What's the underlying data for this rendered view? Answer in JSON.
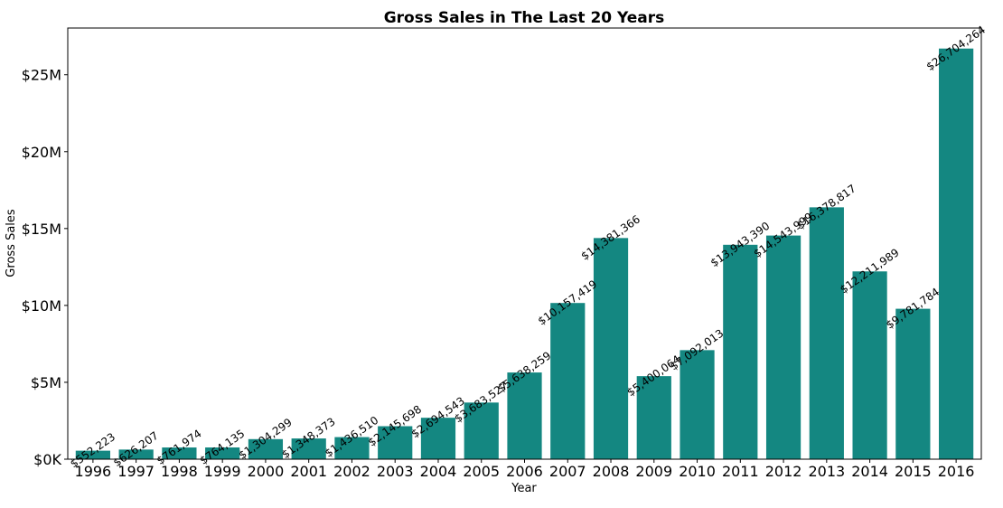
{
  "chart_data": {
    "type": "bar",
    "title": "Gross Sales in The Last 20 Years",
    "xlabel": "Year",
    "ylabel": "Gross Sales",
    "categories": [
      "1996",
      "1997",
      "1998",
      "1999",
      "2000",
      "2001",
      "2002",
      "2003",
      "2004",
      "2005",
      "2006",
      "2007",
      "2008",
      "2009",
      "2010",
      "2011",
      "2012",
      "2013",
      "2014",
      "2015",
      "2016"
    ],
    "values": [
      552223,
      626207,
      761974,
      764135,
      1304299,
      1348373,
      1436510,
      2145698,
      2694543,
      3683527,
      5638259,
      10157419,
      14381366,
      5400064,
      7092013,
      13943390,
      14543999,
      16378817,
      12211989,
      9781784,
      26704264
    ],
    "data_labels": [
      "$552,223",
      "$626,207",
      "$761,974",
      "$764,135",
      "$1,304,299",
      "$1,348,373",
      "$1,436,510",
      "$2,145,698",
      "$2,694,543",
      "$3,683,527",
      "$5,638,259",
      "$10,157,419",
      "$14,381,366",
      "$5,400,064",
      "$7,092,013",
      "$13,943,390",
      "$14,543,999",
      "$16,378,817",
      "$12,211,989",
      "$9,781,784",
      "$26,704,264"
    ],
    "y_ticks": [
      0,
      5000000,
      10000000,
      15000000,
      20000000,
      25000000
    ],
    "y_tick_labels": [
      "$0K",
      "$5M",
      "$10M",
      "$15M",
      "$20M",
      "$25M"
    ],
    "ylim": [
      0,
      28039477
    ],
    "grid": false,
    "legend": "none",
    "bar_color": "#148781"
  }
}
